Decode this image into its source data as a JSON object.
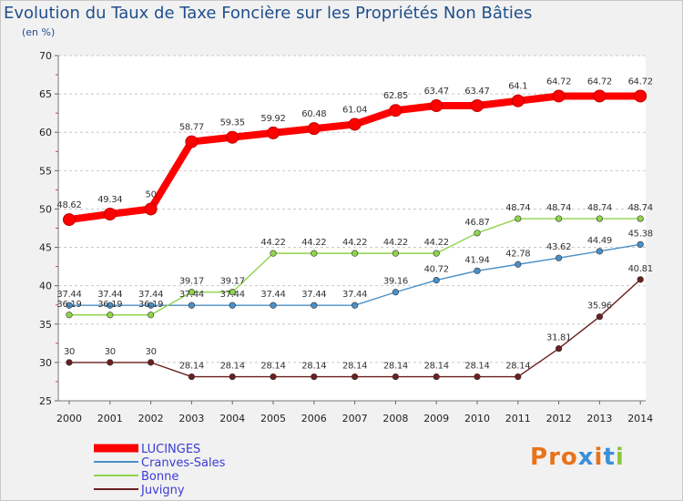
{
  "chart_data": {
    "type": "line",
    "title": "Evolution du Taux de Taxe Foncière sur les Propriétés Non Bâties",
    "unit_label": "(en %)",
    "x": [
      "2000",
      "2001",
      "2002",
      "2003",
      "2004",
      "2005",
      "2006",
      "2007",
      "2008",
      "2009",
      "2010",
      "2011",
      "2012",
      "2013",
      "2014"
    ],
    "yticks": [
      "25",
      "30",
      "35",
      "40",
      "45",
      "50",
      "55",
      "60",
      "65",
      "70"
    ],
    "ylim": [
      25,
      70
    ],
    "grid": "horizontal dashed",
    "legend_position": "bottom-left",
    "series": [
      {
        "name": "LUCINGES",
        "color": "#ff0000",
        "values": [
          48.62,
          49.34,
          50,
          58.77,
          59.35,
          59.92,
          60.48,
          61.04,
          62.85,
          63.47,
          63.47,
          64.1,
          64.72,
          64.72,
          64.72
        ],
        "labels": [
          "48.62",
          "49.34",
          "50",
          "58.77",
          "59.35",
          "59.92",
          "60.48",
          "61.04",
          "62.85",
          "63.47",
          "63.47",
          "64.1",
          "64.72",
          "64.72",
          "64.72"
        ]
      },
      {
        "name": "Cranves-Sales",
        "color": "#4a90c8",
        "values": [
          37.44,
          37.44,
          37.44,
          37.44,
          37.44,
          37.44,
          37.44,
          37.44,
          39.16,
          40.72,
          41.94,
          42.78,
          43.62,
          44.49,
          45.38
        ],
        "labels": [
          "37.44",
          "37.44",
          "37.44",
          "37.44",
          "37.44",
          "37.44",
          "37.44",
          "37.44",
          "39.16",
          "40.72",
          "41.94",
          "42.78",
          "43.62",
          "44.49",
          "45.38"
        ]
      },
      {
        "name": "Bonne",
        "color": "#8fd44a",
        "values": [
          36.19,
          36.19,
          36.19,
          39.17,
          39.17,
          44.22,
          44.22,
          44.22,
          44.22,
          44.22,
          46.87,
          48.74,
          48.74,
          48.74,
          48.74
        ],
        "labels": [
          "36.19",
          "36.19",
          "36.19",
          "39.17",
          "39.17",
          "44.22",
          "44.22",
          "44.22",
          "44.22",
          "44.22",
          "46.87",
          "48.74",
          "48.74",
          "48.74",
          "48.74"
        ]
      },
      {
        "name": "Juvigny",
        "color": "#6b1f1f",
        "values": [
          30,
          30,
          30,
          28.14,
          28.14,
          28.14,
          28.14,
          28.14,
          28.14,
          28.14,
          28.14,
          28.14,
          31.81,
          35.96,
          40.81
        ],
        "labels": [
          "30",
          "30",
          "30",
          "28.14",
          "28.14",
          "28.14",
          "28.14",
          "28.14",
          "28.14",
          "28.14",
          "28.14",
          "28.14",
          "31.81",
          "35.96",
          "40.81"
        ]
      }
    ]
  },
  "legend_text_color": "#3b3bd6",
  "logo_text": "Proxiti",
  "logo_letter_colors": [
    "#e8731a",
    "#e8731a",
    "#e8731a",
    "#3c8fd8",
    "#e8731a",
    "#3c8fd8",
    "#8cc63f"
  ]
}
